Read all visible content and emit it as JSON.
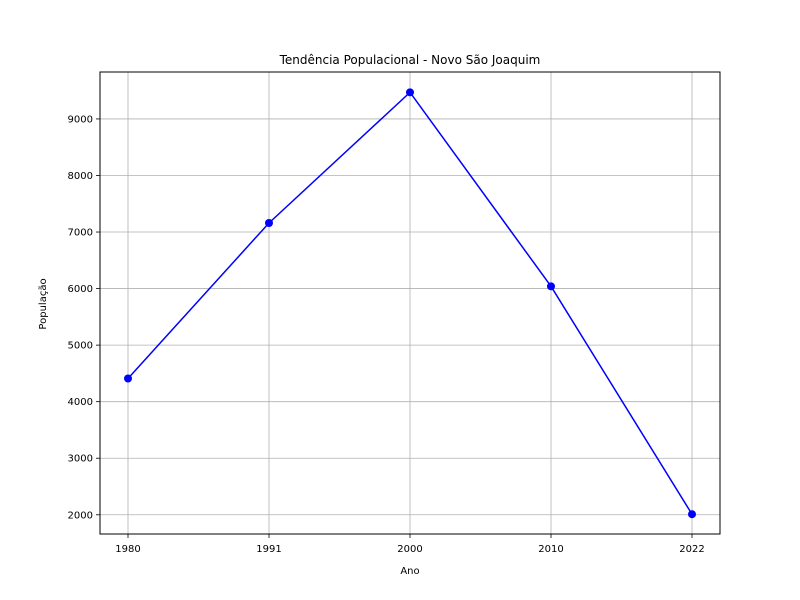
{
  "chart_data": {
    "type": "line",
    "title": "Tendência Populacional - Novo São Joaquim",
    "xlabel": "Ano",
    "ylabel": "População",
    "categories": [
      "1980",
      "1991",
      "2000",
      "2010",
      "2022"
    ],
    "series": [
      {
        "values": [
          4410,
          7160,
          9470,
          6040,
          2010
        ],
        "color": "#0000ff",
        "marker": "circle"
      }
    ],
    "ylim": [
      1660,
      9830
    ],
    "yticks": [
      2000,
      3000,
      4000,
      5000,
      6000,
      7000,
      8000,
      9000
    ],
    "grid": true
  }
}
